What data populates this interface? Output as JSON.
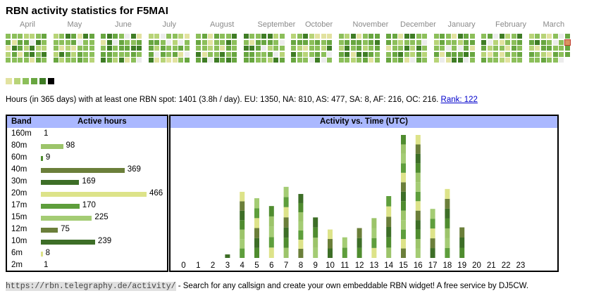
{
  "page": {
    "title": "RBN activity statistics for F5MAI"
  },
  "calendar": {
    "months": [
      "April",
      "May",
      "June",
      "July",
      "August",
      "September",
      "October",
      "November",
      "December",
      "January",
      "February",
      "March"
    ],
    "legend_colors": [
      "#e2e2a0",
      "#b8d478",
      "#8cbf5a",
      "#68a640",
      "#3f7d25",
      "#000000"
    ],
    "empty_color": "#ececec"
  },
  "summary": {
    "text": "Hours (in 365 days) with at least one RBN spot: 1401 (3.8h / day). EU: 1350, NA: 810, AS: 477, SA: 8, AF: 216, OC: 216.",
    "rank_link": "Rank: 122"
  },
  "bands": {
    "header_band": "Band",
    "header_hours": "Active hours",
    "rows": [
      {
        "band": "160m",
        "hours": "1",
        "value": 1,
        "color": "#cccccc"
      },
      {
        "band": "80m",
        "hours": "98",
        "value": 98,
        "color": "#9cc46a"
      },
      {
        "band": "60m",
        "hours": "9",
        "value": 9,
        "color": "#4f8c2f"
      },
      {
        "band": "40m",
        "hours": "369",
        "value": 369,
        "color": "#6b7f3a"
      },
      {
        "band": "30m",
        "hours": "169",
        "value": 169,
        "color": "#3d6e27"
      },
      {
        "band": "20m",
        "hours": "466",
        "value": 466,
        "color": "#dde389"
      },
      {
        "band": "17m",
        "hours": "170",
        "value": 170,
        "color": "#5e9e3c"
      },
      {
        "band": "15m",
        "hours": "225",
        "value": 225,
        "color": "#a4cc74"
      },
      {
        "band": "12m",
        "hours": "75",
        "value": 75,
        "color": "#6b7f3a"
      },
      {
        "band": "10m",
        "hours": "239",
        "value": 239,
        "color": "#3d6e27"
      },
      {
        "band": "6m",
        "hours": "8",
        "value": 8,
        "color": "#dde389"
      },
      {
        "band": "2m",
        "hours": "1",
        "value": 1,
        "color": "#cccccc"
      }
    ]
  },
  "chart_data": {
    "type": "bar",
    "title": "Activity vs. Time (UTC)",
    "categories": [
      "0",
      "1",
      "2",
      "3",
      "4",
      "5",
      "6",
      "7",
      "8",
      "9",
      "10",
      "11",
      "12",
      "13",
      "14",
      "15",
      "16",
      "17",
      "18",
      "19",
      "20",
      "21",
      "22",
      "23"
    ],
    "values": [
      0,
      0,
      0,
      5,
      93,
      84,
      73,
      100,
      90,
      57,
      40,
      29,
      42,
      56,
      87,
      173,
      173,
      69,
      97,
      43,
      0,
      0,
      0,
      0
    ],
    "segment_colors": [
      "#9cc46a",
      "#4f8c2f",
      "#3d6e27",
      "#6b7f3a",
      "#dde389",
      "#5e9e3c",
      "#a4cc74"
    ]
  },
  "footer": {
    "url": "https://rbn.telegraphy.de/activity/",
    "text": " - Search for any callsign and create your own embeddable RBN widget! A free service by DJ5CW."
  }
}
